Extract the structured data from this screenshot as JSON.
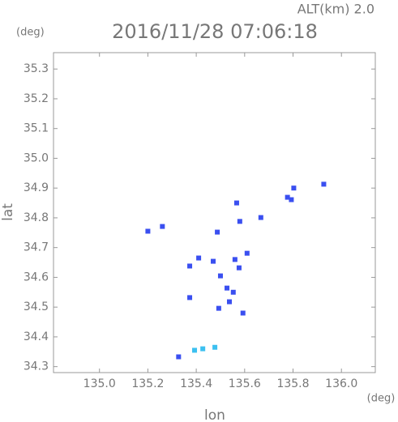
{
  "chart_data": {
    "type": "scatter",
    "title": "2016/11/28 07:06:18",
    "subtitle": "ALT(km) 2.0",
    "y_unit": "(deg)",
    "x_unit": "(deg)",
    "xlabel": "lon",
    "ylabel": "lat",
    "xlim": [
      134.81,
      136.14
    ],
    "ylim": [
      34.28,
      35.355
    ],
    "xticks": [
      {
        "value": 135.0,
        "label": "135.0"
      },
      135.2,
      135.4,
      135.6,
      135.8,
      {
        "value": 136.0,
        "label": "136.0"
      }
    ],
    "yticks": [
      34.3,
      34.4,
      34.5,
      34.6,
      34.7,
      34.8,
      34.9,
      {
        "value": 35.0,
        "label": "35.0"
      },
      35.1,
      35.2,
      35.3
    ],
    "series": [
      {
        "color": "#3a4ff0",
        "x": [
          135.927,
          135.803,
          135.793,
          135.777,
          135.667,
          135.58,
          135.567,
          135.2,
          135.26,
          135.487,
          135.61,
          135.577,
          135.56,
          135.47,
          135.373,
          135.41,
          135.5,
          135.527,
          135.537,
          135.493,
          135.553,
          135.373,
          135.593,
          135.327
        ],
        "y": [
          34.913,
          34.9,
          34.861,
          34.869,
          34.801,
          34.788,
          34.85,
          34.755,
          34.771,
          34.752,
          34.681,
          34.632,
          34.66,
          34.654,
          34.638,
          34.665,
          34.605,
          34.564,
          34.518,
          34.496,
          34.55,
          34.532,
          34.48,
          34.333
        ]
      },
      {
        "color": "#3cc0f0",
        "x": [
          135.393,
          135.427,
          135.477
        ],
        "y": [
          34.355,
          34.36,
          34.365
        ]
      }
    ]
  }
}
